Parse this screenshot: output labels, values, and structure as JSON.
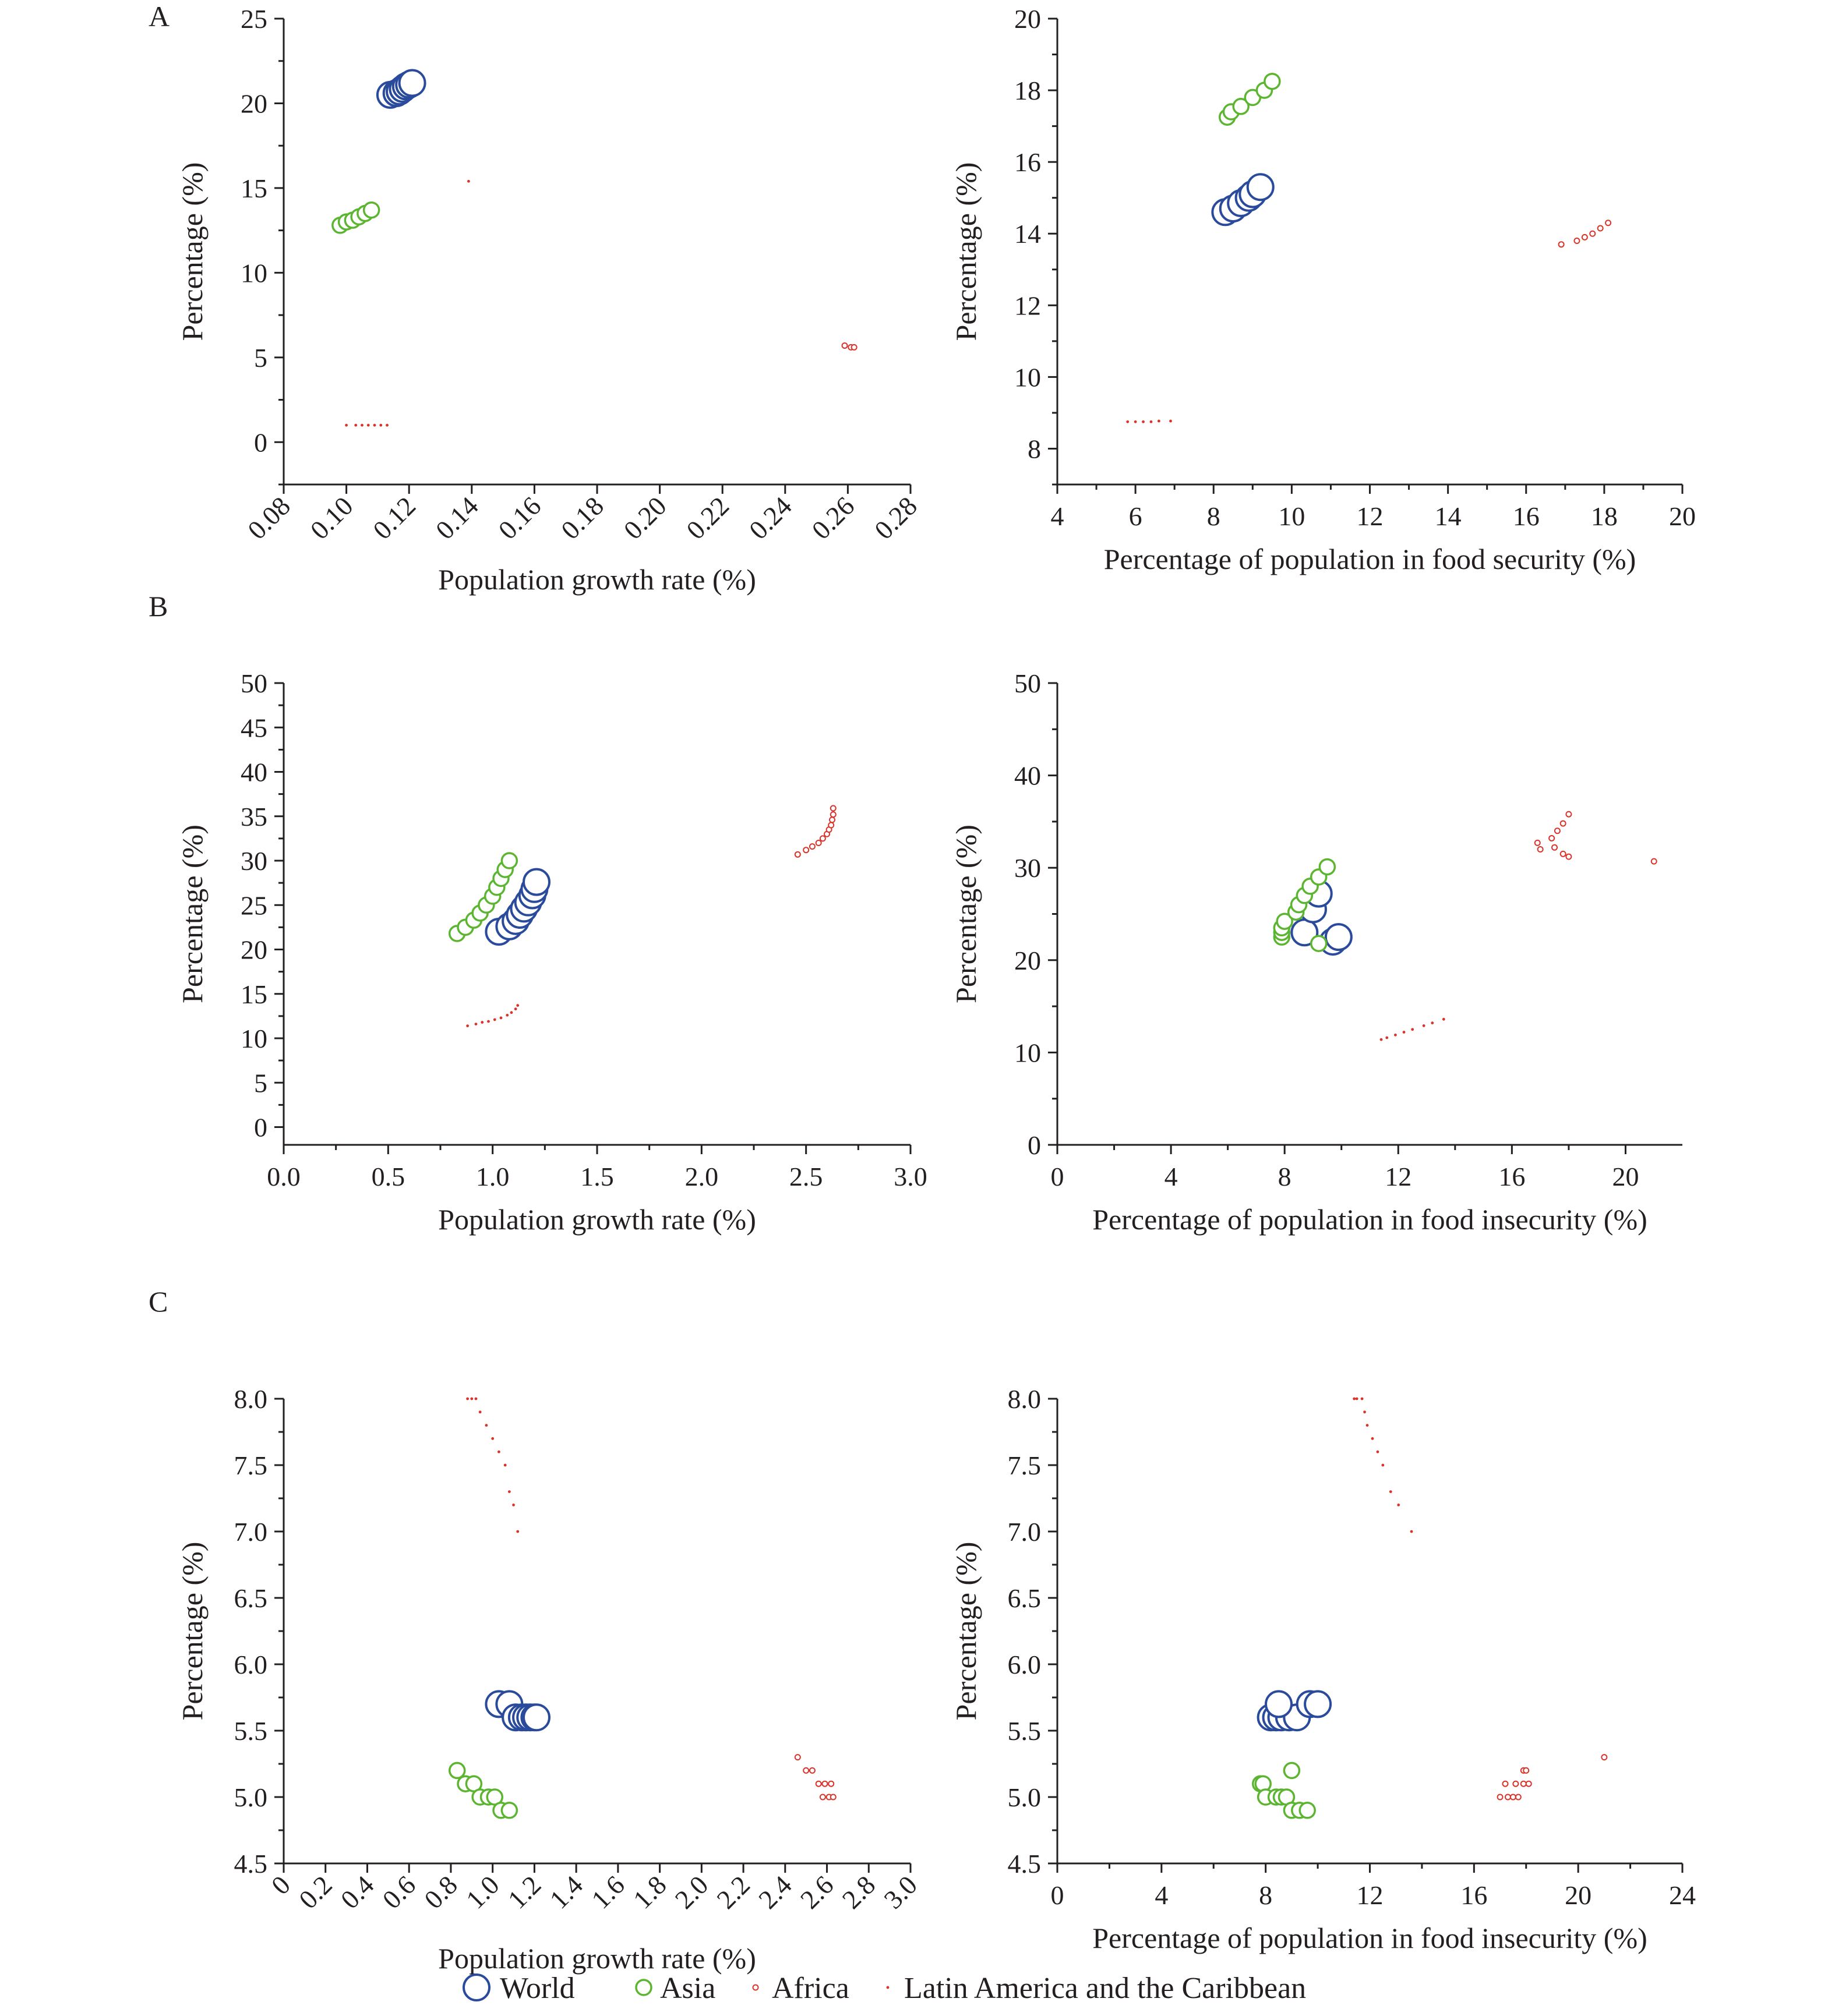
{
  "panel_labels": [
    "A",
    "B",
    "C"
  ],
  "series_styles": {
    "World": {
      "color": "#2a4a9b",
      "size": "large"
    },
    "Asia": {
      "color": "#5cb531",
      "size": "medium"
    },
    "Africa": {
      "color": "#d9342b",
      "size": "small"
    },
    "Latin America and the Caribbean": {
      "color": "#d9342b",
      "size": "dot"
    }
  },
  "legend": {
    "items": [
      {
        "label": "World",
        "series": "World"
      },
      {
        "label": "Asia",
        "series": "Asia"
      },
      {
        "label": "Africa",
        "series": "Africa"
      },
      {
        "label": "Latin America and the Caribbean",
        "series": "Latin America and the Caribbean"
      }
    ]
  },
  "chart_data": [
    {
      "panel": "A",
      "type": "scatter",
      "xlabel": "Population growth rate (%)",
      "ylabel": "Percentage (%)",
      "xlim": [
        0.08,
        0.28
      ],
      "ylim": [
        -2.5,
        25
      ],
      "xticks": [
        "0.08",
        "0.10",
        "0.12",
        "0.14",
        "0.16",
        "0.18",
        "0.20",
        "0.22",
        "0.24",
        "0.26",
        "0.28"
      ],
      "yticks": [
        "0",
        "5",
        "10",
        "15",
        "20",
        "25"
      ],
      "xticks_rotated": true,
      "series": [
        {
          "name": "World",
          "points": [
            [
              0.114,
              20.5
            ],
            [
              0.116,
              20.6
            ],
            [
              0.117,
              20.7
            ],
            [
              0.118,
              20.85
            ],
            [
              0.119,
              21.0
            ],
            [
              0.12,
              21.1
            ],
            [
              0.121,
              21.2
            ]
          ]
        },
        {
          "name": "Asia",
          "points": [
            [
              0.098,
              12.8
            ],
            [
              0.1,
              13.0
            ],
            [
              0.102,
              13.1
            ],
            [
              0.104,
              13.3
            ],
            [
              0.106,
              13.5
            ],
            [
              0.108,
              13.7
            ]
          ]
        },
        {
          "name": "Africa",
          "points": [
            [
              0.259,
              5.7
            ],
            [
              0.261,
              5.6
            ],
            [
              0.262,
              5.6
            ]
          ]
        },
        {
          "name": "Latin America and the Caribbean",
          "points": [
            [
              0.1,
              1.0
            ],
            [
              0.103,
              1.0
            ],
            [
              0.105,
              1.0
            ],
            [
              0.107,
              1.0
            ],
            [
              0.109,
              1.0
            ],
            [
              0.111,
              1.0
            ],
            [
              0.113,
              1.0
            ],
            [
              0.139,
              15.4
            ]
          ]
        }
      ]
    },
    {
      "panel": "A",
      "type": "scatter",
      "xlabel": "Percentage of population in food security (%)",
      "ylabel": "Percentage (%)",
      "xlim": [
        4,
        20
      ],
      "ylim": [
        7,
        20
      ],
      "xticks": [
        "4",
        "6",
        "8",
        "10",
        "12",
        "14",
        "16",
        "18",
        "20"
      ],
      "yticks": [
        "8",
        "10",
        "12",
        "14",
        "16",
        "18",
        "20"
      ],
      "xticks_rotated": false,
      "series": [
        {
          "name": "World",
          "points": [
            [
              8.3,
              14.6
            ],
            [
              8.5,
              14.7
            ],
            [
              8.7,
              14.85
            ],
            [
              8.9,
              15.0
            ],
            [
              9.0,
              15.1
            ],
            [
              9.2,
              15.3
            ]
          ]
        },
        {
          "name": "Asia",
          "points": [
            [
              8.35,
              17.25
            ],
            [
              8.45,
              17.4
            ],
            [
              8.7,
              17.55
            ],
            [
              9.0,
              17.8
            ],
            [
              9.3,
              18.0
            ],
            [
              9.5,
              18.25
            ]
          ]
        },
        {
          "name": "Africa",
          "points": [
            [
              16.9,
              13.7
            ],
            [
              17.3,
              13.8
            ],
            [
              17.5,
              13.9
            ],
            [
              17.7,
              14.0
            ],
            [
              17.9,
              14.15
            ],
            [
              18.1,
              14.3
            ]
          ]
        },
        {
          "name": "Latin America and the Caribbean",
          "points": [
            [
              5.8,
              8.75
            ],
            [
              6.0,
              8.75
            ],
            [
              6.2,
              8.75
            ],
            [
              6.4,
              8.75
            ],
            [
              6.6,
              8.77
            ],
            [
              6.9,
              8.77
            ]
          ]
        }
      ]
    },
    {
      "panel": "B",
      "type": "scatter",
      "xlabel": "Population growth rate (%)",
      "ylabel": "Percentage (%)",
      "xlim": [
        0.0,
        3.0
      ],
      "ylim": [
        -2,
        50
      ],
      "xticks": [
        "0.0",
        "0.5",
        "1.0",
        "1.5",
        "2.0",
        "2.5",
        "3.0"
      ],
      "yticks": [
        "0",
        "5",
        "10",
        "15",
        "20",
        "25",
        "30",
        "35",
        "40",
        "45",
        "50"
      ],
      "xticks_rotated": false,
      "series": [
        {
          "name": "World",
          "points": [
            [
              1.03,
              22.0
            ],
            [
              1.08,
              22.6
            ],
            [
              1.11,
              23.2
            ],
            [
              1.13,
              23.9
            ],
            [
              1.15,
              24.6
            ],
            [
              1.17,
              25.3
            ],
            [
              1.19,
              26.1
            ],
            [
              1.2,
              26.8
            ],
            [
              1.21,
              27.6
            ]
          ]
        },
        {
          "name": "Asia",
          "points": [
            [
              0.83,
              21.8
            ],
            [
              0.87,
              22.5
            ],
            [
              0.91,
              23.3
            ],
            [
              0.94,
              24.1
            ],
            [
              0.97,
              25.0
            ],
            [
              1.0,
              26.0
            ],
            [
              1.02,
              27.0
            ],
            [
              1.04,
              28.0
            ],
            [
              1.06,
              29.0
            ],
            [
              1.08,
              30.0
            ]
          ]
        },
        {
          "name": "Africa",
          "points": [
            [
              2.46,
              30.7
            ],
            [
              2.5,
              31.2
            ],
            [
              2.53,
              31.6
            ],
            [
              2.56,
              32.0
            ],
            [
              2.58,
              32.5
            ],
            [
              2.6,
              33.0
            ],
            [
              2.61,
              33.5
            ],
            [
              2.62,
              34.0
            ],
            [
              2.625,
              34.6
            ],
            [
              2.63,
              35.2
            ],
            [
              2.63,
              35.9
            ]
          ]
        },
        {
          "name": "Latin America and the Caribbean",
          "points": [
            [
              0.88,
              11.4
            ],
            [
              0.92,
              11.6
            ],
            [
              0.95,
              11.8
            ],
            [
              0.98,
              11.9
            ],
            [
              1.01,
              12.1
            ],
            [
              1.04,
              12.3
            ],
            [
              1.07,
              12.6
            ],
            [
              1.09,
              12.9
            ],
            [
              1.11,
              13.3
            ],
            [
              1.12,
              13.7
            ]
          ]
        }
      ]
    },
    {
      "panel": "B",
      "type": "scatter",
      "xlabel": "Percentage of population in food insecurity (%)",
      "ylabel": "Percentage (%)",
      "xlim": [
        0,
        22
      ],
      "ylim": [
        0,
        50
      ],
      "xticks": [
        "0",
        "4",
        "8",
        "12",
        "16",
        "20"
      ],
      "yticks": [
        "0",
        "10",
        "20",
        "30",
        "40",
        "50"
      ],
      "xticks_rotated": false,
      "series": [
        {
          "name": "World",
          "points": [
            [
              8.7,
              23.0
            ],
            [
              9.0,
              25.5
            ],
            [
              9.2,
              27.2
            ],
            [
              9.7,
              22.0
            ],
            [
              9.9,
              22.5
            ]
          ]
        },
        {
          "name": "Asia",
          "points": [
            [
              7.9,
              22.5
            ],
            [
              7.9,
              23.0
            ],
            [
              7.9,
              23.5
            ],
            [
              8.0,
              24.2
            ],
            [
              8.4,
              25.2
            ],
            [
              8.5,
              26.0
            ],
            [
              8.7,
              27.0
            ],
            [
              8.9,
              28.0
            ],
            [
              9.2,
              29.0
            ],
            [
              9.5,
              30.1
            ],
            [
              9.2,
              21.8
            ]
          ]
        },
        {
          "name": "Africa",
          "points": [
            [
              16.9,
              32.7
            ],
            [
              17.0,
              32.0
            ],
            [
              17.4,
              33.2
            ],
            [
              17.5,
              32.2
            ],
            [
              17.6,
              34.0
            ],
            [
              17.8,
              34.8
            ],
            [
              18.0,
              35.8
            ],
            [
              17.8,
              31.5
            ],
            [
              18.0,
              31.2
            ],
            [
              21.0,
              30.7
            ]
          ]
        },
        {
          "name": "Latin America and the Caribbean",
          "points": [
            [
              11.4,
              11.4
            ],
            [
              11.6,
              11.6
            ],
            [
              11.9,
              11.9
            ],
            [
              12.2,
              12.2
            ],
            [
              12.5,
              12.5
            ],
            [
              12.9,
              12.9
            ],
            [
              13.2,
              13.2
            ],
            [
              13.6,
              13.6
            ]
          ]
        }
      ]
    },
    {
      "panel": "C",
      "type": "scatter",
      "xlabel": "Population growth rate (%)",
      "ylabel": "Percentage (%)",
      "xlim": [
        0.0,
        3.0
      ],
      "ylim": [
        4.5,
        8.0
      ],
      "xticks": [
        "0",
        "0.2",
        "0.4",
        "0.6",
        "0.8",
        "1.0",
        "1.2",
        "1.4",
        "1.6",
        "1.8",
        "2.0",
        "2.2",
        "2.4",
        "2.6",
        "2.8",
        "3.0"
      ],
      "yticks": [
        "4.5",
        "5.0",
        "5.5",
        "6.0",
        "6.5",
        "7.0",
        "7.5",
        "8.0"
      ],
      "xticks_rotated": true,
      "series": [
        {
          "name": "World",
          "points": [
            [
              1.03,
              5.7
            ],
            [
              1.08,
              5.7
            ],
            [
              1.11,
              5.6
            ],
            [
              1.14,
              5.6
            ],
            [
              1.16,
              5.6
            ],
            [
              1.18,
              5.6
            ],
            [
              1.2,
              5.6
            ],
            [
              1.21,
              5.6
            ]
          ]
        },
        {
          "name": "Asia",
          "points": [
            [
              0.83,
              5.2
            ],
            [
              0.87,
              5.1
            ],
            [
              0.91,
              5.1
            ],
            [
              0.94,
              5.0
            ],
            [
              0.98,
              5.0
            ],
            [
              1.01,
              5.0
            ],
            [
              1.04,
              4.9
            ],
            [
              1.08,
              4.9
            ]
          ]
        },
        {
          "name": "Africa",
          "points": [
            [
              2.46,
              5.3
            ],
            [
              2.5,
              5.2
            ],
            [
              2.53,
              5.2
            ],
            [
              2.56,
              5.1
            ],
            [
              2.59,
              5.1
            ],
            [
              2.62,
              5.1
            ],
            [
              2.58,
              5.0
            ],
            [
              2.61,
              5.0
            ],
            [
              2.63,
              5.0
            ]
          ]
        },
        {
          "name": "Latin America and the Caribbean",
          "points": [
            [
              0.88,
              8.0
            ],
            [
              0.9,
              8.0
            ],
            [
              0.92,
              8.0
            ],
            [
              0.94,
              7.9
            ],
            [
              0.97,
              7.8
            ],
            [
              1.0,
              7.7
            ],
            [
              1.03,
              7.6
            ],
            [
              1.06,
              7.5
            ],
            [
              1.08,
              7.3
            ],
            [
              1.1,
              7.2
            ],
            [
              1.12,
              7.0
            ]
          ]
        }
      ]
    },
    {
      "panel": "C",
      "type": "scatter",
      "xlabel": "Percentage of population in food insecurity (%)",
      "ylabel": "Percentage (%)",
      "xlim": [
        0,
        24
      ],
      "ylim": [
        4.5,
        8.0
      ],
      "xticks": [
        "0",
        "4",
        "8",
        "12",
        "16",
        "20",
        "24"
      ],
      "yticks": [
        "4.5",
        "5.0",
        "5.5",
        "6.0",
        "6.5",
        "7.0",
        "7.5",
        "8.0"
      ],
      "xticks_rotated": false,
      "series": [
        {
          "name": "World",
          "points": [
            [
              8.2,
              5.6
            ],
            [
              8.4,
              5.6
            ],
            [
              8.6,
              5.6
            ],
            [
              8.9,
              5.6
            ],
            [
              9.2,
              5.6
            ],
            [
              8.5,
              5.7
            ],
            [
              9.7,
              5.7
            ],
            [
              10.0,
              5.7
            ]
          ]
        },
        {
          "name": "Asia",
          "points": [
            [
              7.8,
              5.1
            ],
            [
              7.9,
              5.1
            ],
            [
              8.0,
              5.0
            ],
            [
              8.4,
              5.0
            ],
            [
              8.6,
              5.0
            ],
            [
              8.8,
              5.0
            ],
            [
              9.0,
              5.2
            ],
            [
              9.0,
              4.9
            ],
            [
              9.3,
              4.9
            ],
            [
              9.6,
              4.9
            ]
          ]
        },
        {
          "name": "Africa",
          "points": [
            [
              17.0,
              5.0
            ],
            [
              17.2,
              5.1
            ],
            [
              17.3,
              5.0
            ],
            [
              17.5,
              5.0
            ],
            [
              17.7,
              5.0
            ],
            [
              17.6,
              5.1
            ],
            [
              17.9,
              5.2
            ],
            [
              18.0,
              5.2
            ],
            [
              17.9,
              5.1
            ],
            [
              18.1,
              5.1
            ],
            [
              21.0,
              5.3
            ]
          ]
        },
        {
          "name": "Latin America and the Caribbean",
          "points": [
            [
              11.4,
              8.0
            ],
            [
              11.5,
              8.0
            ],
            [
              11.7,
              8.0
            ],
            [
              11.8,
              7.9
            ],
            [
              11.9,
              7.8
            ],
            [
              12.1,
              7.7
            ],
            [
              12.3,
              7.6
            ],
            [
              12.5,
              7.5
            ],
            [
              12.8,
              7.3
            ],
            [
              13.1,
              7.2
            ],
            [
              13.6,
              7.0
            ]
          ]
        }
      ]
    }
  ]
}
